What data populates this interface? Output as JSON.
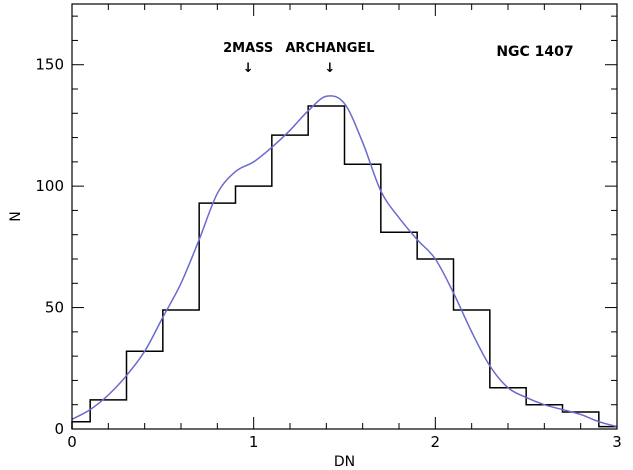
{
  "chart_data": {
    "type": "histogram-with-curve",
    "xlabel": "DN",
    "ylabel": "N",
    "xlim": [
      0,
      3
    ],
    "ylim": [
      0,
      175
    ],
    "x_ticks": [
      0,
      1,
      2,
      3
    ],
    "x_tick_labels": [
      "0",
      "1",
      "2",
      "3"
    ],
    "y_ticks": [
      0,
      50,
      100,
      150
    ],
    "y_tick_labels": [
      "0",
      "50",
      "100",
      "150"
    ],
    "grid": false,
    "legend": "none",
    "panel_label": "NGC 1407",
    "annotations": [
      {
        "text": "2MASS",
        "x": 0.97,
        "arrow": "↓"
      },
      {
        "text": "ARCHANGEL",
        "x": 1.42,
        "arrow": "↓"
      }
    ],
    "histogram": {
      "bin_edges": [
        0,
        0.1,
        0.3,
        0.5,
        0.7,
        0.9,
        1.1,
        1.3,
        1.5,
        1.7,
        1.9,
        2.1,
        2.3,
        2.5,
        2.7,
        2.9,
        3.0
      ],
      "counts": [
        3,
        12,
        32,
        49,
        93,
        100,
        121,
        133,
        109,
        81,
        70,
        49,
        17,
        10,
        7,
        1
      ]
    },
    "smooth_curve": {
      "x": [
        0,
        0.1,
        0.2,
        0.3,
        0.4,
        0.5,
        0.6,
        0.7,
        0.8,
        0.9,
        1.0,
        1.1,
        1.2,
        1.3,
        1.4,
        1.5,
        1.6,
        1.7,
        1.8,
        1.9,
        2.0,
        2.1,
        2.2,
        2.3,
        2.4,
        2.5,
        2.6,
        2.7,
        2.8,
        2.9,
        3.0
      ],
      "y": [
        4,
        8,
        14,
        22,
        32,
        46,
        60,
        78,
        97,
        106,
        110,
        116,
        123,
        131,
        137,
        134,
        118,
        98,
        87,
        78,
        70,
        56,
        40,
        26,
        17,
        13,
        10,
        8,
        6,
        3,
        1
      ]
    },
    "colors": {
      "histogram": "#000000",
      "curve": "#6a6acd",
      "axes": "#000000"
    }
  }
}
